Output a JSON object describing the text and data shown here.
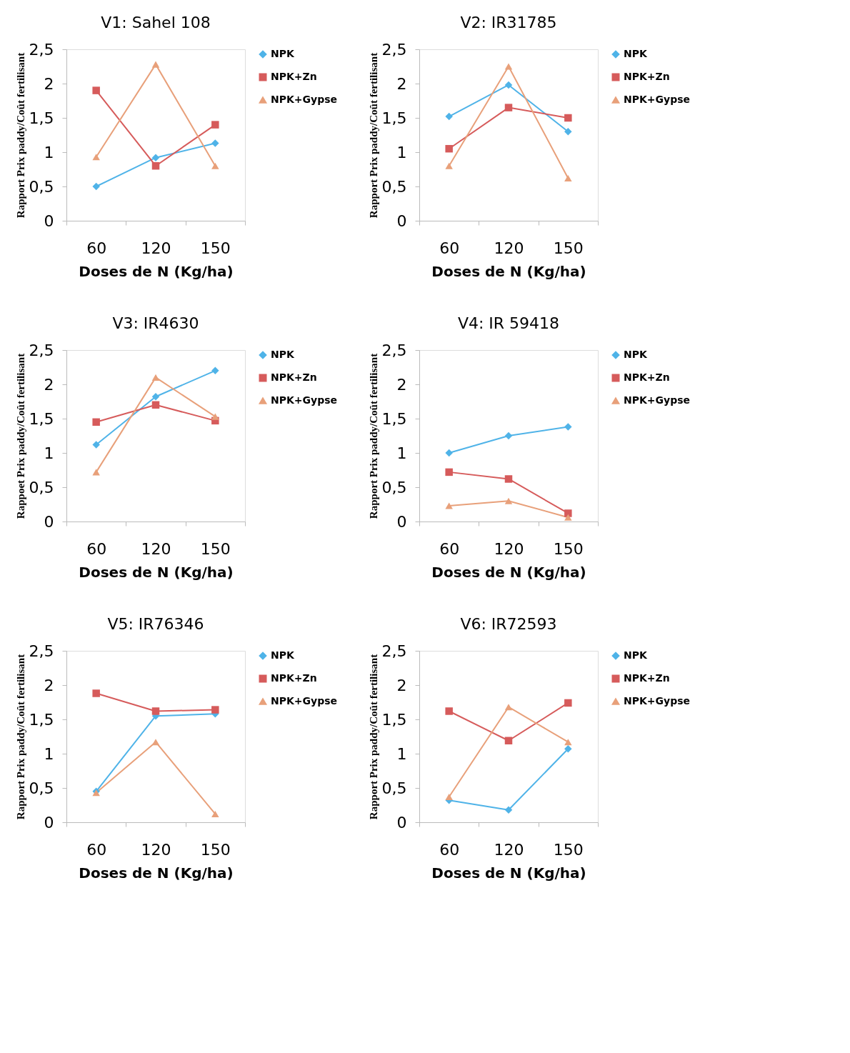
{
  "chart_data": [
    {
      "type": "line",
      "title": "V1: Sahel 108",
      "xlabel": "Doses de N (Kg/ha)",
      "ylabel": "Rapport Prix paddy/Coût fertilisant",
      "categories": [
        "60",
        "120",
        "150"
      ],
      "ylim": [
        0,
        2.5
      ],
      "yticks": [
        {
          "value": 0,
          "label": "0"
        },
        {
          "value": 0.5,
          "label": "0,5"
        },
        {
          "value": 1,
          "label": "1"
        },
        {
          "value": 1.5,
          "label": "1,5"
        },
        {
          "value": 2,
          "label": "2"
        },
        {
          "value": 2.5,
          "label": "2,5"
        }
      ],
      "legend": "right",
      "grid": false,
      "series": [
        {
          "name": "NPK",
          "color": "#4fb3e8",
          "marker": "diamond",
          "values": [
            0.5,
            0.92,
            1.13
          ]
        },
        {
          "name": "NPK+Zn",
          "color": "#d65b5b",
          "marker": "square",
          "values": [
            1.9,
            0.8,
            1.4
          ]
        },
        {
          "name": "NPK+Gypse",
          "color": "#e8a07a",
          "marker": "triangle",
          "values": [
            0.93,
            2.28,
            0.8
          ]
        }
      ]
    },
    {
      "type": "line",
      "title": "V2: IR31785",
      "xlabel": "Doses de N (Kg/ha)",
      "ylabel": "Rapport Prix paddy/Coût fertilisant",
      "categories": [
        "60",
        "120",
        "150"
      ],
      "ylim": [
        0,
        2.5
      ],
      "yticks": [
        {
          "value": 0,
          "label": "0"
        },
        {
          "value": 0.5,
          "label": "0,5"
        },
        {
          "value": 1,
          "label": "1"
        },
        {
          "value": 1.5,
          "label": "1,5"
        },
        {
          "value": 2,
          "label": "2"
        },
        {
          "value": 2.5,
          "label": "2,5"
        }
      ],
      "legend": "right",
      "grid": false,
      "series": [
        {
          "name": "NPK",
          "color": "#4fb3e8",
          "marker": "diamond",
          "values": [
            1.52,
            1.98,
            1.3
          ]
        },
        {
          "name": "NPK+Zn",
          "color": "#d65b5b",
          "marker": "square",
          "values": [
            1.05,
            1.65,
            1.5
          ]
        },
        {
          "name": "NPK+Gypse",
          "color": "#e8a07a",
          "marker": "triangle",
          "values": [
            0.8,
            2.25,
            0.62
          ]
        }
      ]
    },
    {
      "type": "line",
      "title": "V3: IR4630",
      "xlabel": "Doses de N (Kg/ha)",
      "ylabel": "Rappoet Prix paddy/Coût fertilisant",
      "categories": [
        "60",
        "120",
        "150"
      ],
      "ylim": [
        0,
        2.5
      ],
      "yticks": [
        {
          "value": 0,
          "label": "0"
        },
        {
          "value": 0.5,
          "label": "0,5"
        },
        {
          "value": 1,
          "label": "1"
        },
        {
          "value": 1.5,
          "label": "1,5"
        },
        {
          "value": 2,
          "label": "2"
        },
        {
          "value": 2.5,
          "label": "2,5"
        }
      ],
      "legend": "right",
      "grid": false,
      "series": [
        {
          "name": "NPK",
          "color": "#4fb3e8",
          "marker": "diamond",
          "values": [
            1.12,
            1.82,
            2.2
          ]
        },
        {
          "name": "NPK+Zn",
          "color": "#d65b5b",
          "marker": "square",
          "values": [
            1.45,
            1.7,
            1.47
          ]
        },
        {
          "name": "NPK+Gypse",
          "color": "#e8a07a",
          "marker": "triangle",
          "values": [
            0.72,
            2.1,
            1.53
          ]
        }
      ]
    },
    {
      "type": "line",
      "title": "V4: IR 59418",
      "xlabel": "Doses de N (Kg/ha)",
      "ylabel": "Rapport Prix paddy/Coût fertilisant",
      "categories": [
        "60",
        "120",
        "150"
      ],
      "ylim": [
        0,
        2.5
      ],
      "yticks": [
        {
          "value": 0,
          "label": "0"
        },
        {
          "value": 0.5,
          "label": "0,5"
        },
        {
          "value": 1,
          "label": "1"
        },
        {
          "value": 1.5,
          "label": "1,5"
        },
        {
          "value": 2,
          "label": "2"
        },
        {
          "value": 2.5,
          "label": "2,5"
        }
      ],
      "legend": "right",
      "grid": false,
      "series": [
        {
          "name": "NPK",
          "color": "#4fb3e8",
          "marker": "diamond",
          "values": [
            1.0,
            1.25,
            1.38
          ]
        },
        {
          "name": "NPK+Zn",
          "color": "#d65b5b",
          "marker": "square",
          "values": [
            0.72,
            0.62,
            0.12
          ]
        },
        {
          "name": "NPK+Gypse",
          "color": "#e8a07a",
          "marker": "triangle",
          "values": [
            0.23,
            0.3,
            0.06
          ]
        }
      ]
    },
    {
      "type": "line",
      "title": "V5: IR76346",
      "xlabel": "Doses de N (Kg/ha)",
      "ylabel": "Rapport Prix paddy/Coût fertilisant",
      "categories": [
        "60",
        "120",
        "150"
      ],
      "ylim": [
        0,
        2.5
      ],
      "yticks": [
        {
          "value": 0,
          "label": "0"
        },
        {
          "value": 0.5,
          "label": "0,5"
        },
        {
          "value": 1,
          "label": "1"
        },
        {
          "value": 1.5,
          "label": "1,5"
        },
        {
          "value": 2,
          "label": "2"
        },
        {
          "value": 2.5,
          "label": "2,5"
        }
      ],
      "legend": "right",
      "grid": false,
      "series": [
        {
          "name": "NPK",
          "color": "#4fb3e8",
          "marker": "diamond",
          "values": [
            0.45,
            1.55,
            1.58
          ]
        },
        {
          "name": "NPK+Zn",
          "color": "#d65b5b",
          "marker": "square",
          "values": [
            1.88,
            1.62,
            1.64
          ]
        },
        {
          "name": "NPK+Gypse",
          "color": "#e8a07a",
          "marker": "triangle",
          "values": [
            0.43,
            1.17,
            0.12
          ]
        }
      ]
    },
    {
      "type": "line",
      "title": "V6: IR72593",
      "xlabel": "Doses de N (Kg/ha)",
      "ylabel": "Rapport Prix paddy/Coût fertilisant",
      "categories": [
        "60",
        "120",
        "150"
      ],
      "ylim": [
        0,
        2.5
      ],
      "yticks": [
        {
          "value": 0,
          "label": "0"
        },
        {
          "value": 0.5,
          "label": "0,5"
        },
        {
          "value": 1,
          "label": "1"
        },
        {
          "value": 1.5,
          "label": "1,5"
        },
        {
          "value": 2,
          "label": "2"
        },
        {
          "value": 2.5,
          "label": "2,5"
        }
      ],
      "legend": "right",
      "grid": false,
      "series": [
        {
          "name": "NPK",
          "color": "#4fb3e8",
          "marker": "diamond",
          "values": [
            0.32,
            0.18,
            1.07
          ]
        },
        {
          "name": "NPK+Zn",
          "color": "#d65b5b",
          "marker": "square",
          "values": [
            1.62,
            1.19,
            1.74
          ]
        },
        {
          "name": "NPK+Gypse",
          "color": "#e8a07a",
          "marker": "triangle",
          "values": [
            0.37,
            1.68,
            1.17
          ]
        }
      ]
    }
  ]
}
